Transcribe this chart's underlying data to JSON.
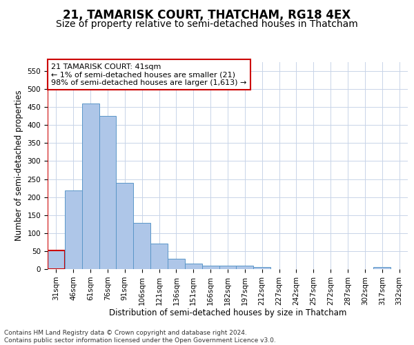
{
  "title": "21, TAMARISK COURT, THATCHAM, RG18 4EX",
  "subtitle": "Size of property relative to semi-detached houses in Thatcham",
  "xlabel": "Distribution of semi-detached houses by size in Thatcham",
  "ylabel": "Number of semi-detached properties",
  "categories": [
    "31sqm",
    "46sqm",
    "61sqm",
    "76sqm",
    "91sqm",
    "106sqm",
    "121sqm",
    "136sqm",
    "151sqm",
    "166sqm",
    "182sqm",
    "197sqm",
    "212sqm",
    "227sqm",
    "242sqm",
    "257sqm",
    "272sqm",
    "287sqm",
    "302sqm",
    "317sqm",
    "332sqm"
  ],
  "values": [
    52,
    218,
    460,
    425,
    240,
    128,
    70,
    28,
    16,
    10,
    10,
    10,
    5,
    0,
    0,
    0,
    0,
    0,
    0,
    5,
    0
  ],
  "bar_color": "#aec6e8",
  "bar_edge_color": "#5a96c8",
  "highlight_bar_index": 0,
  "highlight_edge_color": "#cc0000",
  "annotation_title": "21 TAMARISK COURT: 41sqm",
  "annotation_line1": "← 1% of semi-detached houses are smaller (21)",
  "annotation_line2": "98% of semi-detached houses are larger (1,613) →",
  "annotation_box_color": "#ffffff",
  "annotation_box_edge_color": "#cc0000",
  "vline_color": "#cc0000",
  "ylim": [
    0,
    575
  ],
  "yticks": [
    0,
    50,
    100,
    150,
    200,
    250,
    300,
    350,
    400,
    450,
    500,
    550
  ],
  "footer_line1": "Contains HM Land Registry data © Crown copyright and database right 2024.",
  "footer_line2": "Contains public sector information licensed under the Open Government Licence v3.0.",
  "background_color": "#ffffff",
  "grid_color": "#c8d4e8",
  "title_fontsize": 12,
  "subtitle_fontsize": 10,
  "axis_label_fontsize": 8.5,
  "tick_fontsize": 7.5,
  "footer_fontsize": 6.5
}
